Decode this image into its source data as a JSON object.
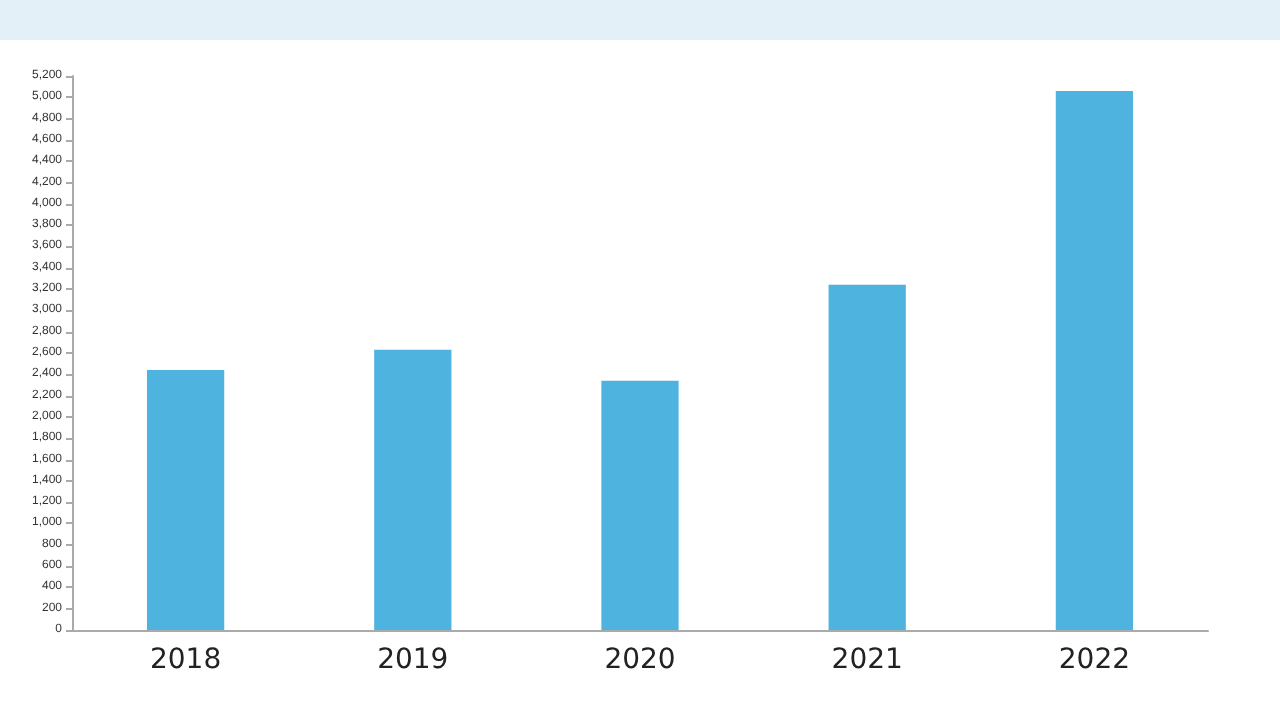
{
  "chart_data": {
    "type": "bar",
    "categories": [
      "2018",
      "2019",
      "2020",
      "2021",
      "2022"
    ],
    "values": [
      2440,
      2630,
      2340,
      3240,
      5060
    ],
    "color": "#4eb3de",
    "ylim": [
      0,
      5200
    ],
    "yticks": [
      {
        "value": 0,
        "label": "0"
      },
      {
        "value": 200,
        "label": "200"
      },
      {
        "value": 400,
        "label": "400"
      },
      {
        "value": 600,
        "label": "600"
      },
      {
        "value": 800,
        "label": "800"
      },
      {
        "value": 1000,
        "label": "1,000"
      },
      {
        "value": 1200,
        "label": "1,200"
      },
      {
        "value": 1400,
        "label": "1,400"
      },
      {
        "value": 1600,
        "label": "1,600"
      },
      {
        "value": 1800,
        "label": "1,800"
      },
      {
        "value": 2000,
        "label": "2,000"
      },
      {
        "value": 2200,
        "label": "2,200"
      },
      {
        "value": 2400,
        "label": "2,400"
      },
      {
        "value": 2600,
        "label": "2,600"
      },
      {
        "value": 2800,
        "label": "2,800"
      },
      {
        "value": 3000,
        "label": "3,000"
      },
      {
        "value": 3200,
        "label": "3,200"
      },
      {
        "value": 3400,
        "label": "3,400"
      },
      {
        "value": 3600,
        "label": "3,600"
      },
      {
        "value": 3800,
        "label": "3,800"
      },
      {
        "value": 4000,
        "label": "4,000"
      },
      {
        "value": 4200,
        "label": "4,200"
      },
      {
        "value": 4400,
        "label": "4,400"
      },
      {
        "value": 4600,
        "label": "4,600"
      },
      {
        "value": 4800,
        "label": "4,800"
      },
      {
        "value": 5000,
        "label": "5,000"
      },
      {
        "value": 5200,
        "label": "5,200"
      }
    ],
    "grid": false
  }
}
